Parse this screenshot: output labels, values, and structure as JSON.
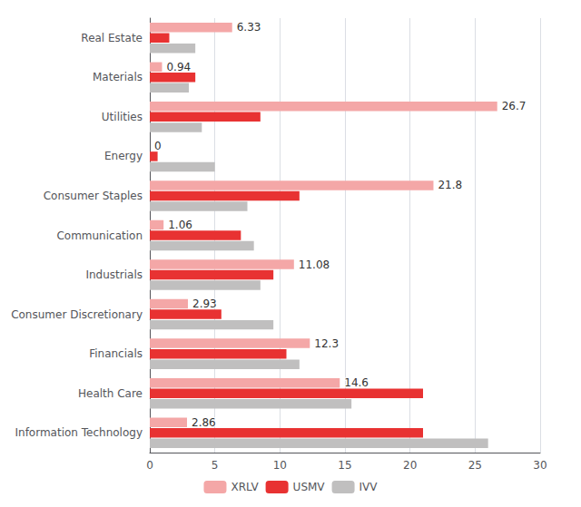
{
  "chart_data": {
    "type": "bar",
    "orientation": "horizontal",
    "categories": [
      "Information Technology",
      "Health Care",
      "Financials",
      "Consumer Discretionary",
      "Industrials",
      "Communication",
      "Consumer Staples",
      "Energy",
      "Utilities",
      "Materials",
      "Real Estate"
    ],
    "series": [
      {
        "name": "XRLV",
        "color": "#f4a7a7",
        "data_labels": true,
        "values": [
          2.86,
          14.6,
          12.3,
          2.93,
          11.08,
          1.06,
          21.8,
          0,
          26.7,
          0.94,
          6.33
        ]
      },
      {
        "name": "USMV",
        "color": "#e83232",
        "values": [
          21.0,
          21.0,
          10.5,
          5.5,
          9.5,
          7.0,
          11.5,
          0.6,
          8.5,
          3.5,
          1.5
        ]
      },
      {
        "name": "IVV",
        "color": "#c0bfbf",
        "values": [
          26.0,
          15.5,
          11.5,
          9.5,
          8.5,
          8.0,
          7.5,
          5.0,
          4.0,
          3.0,
          3.5
        ]
      }
    ],
    "xlim": [
      0,
      30
    ],
    "xticks": [
      0,
      5,
      10,
      15,
      20,
      25,
      30
    ],
    "grid": true,
    "legend": "bottom"
  }
}
